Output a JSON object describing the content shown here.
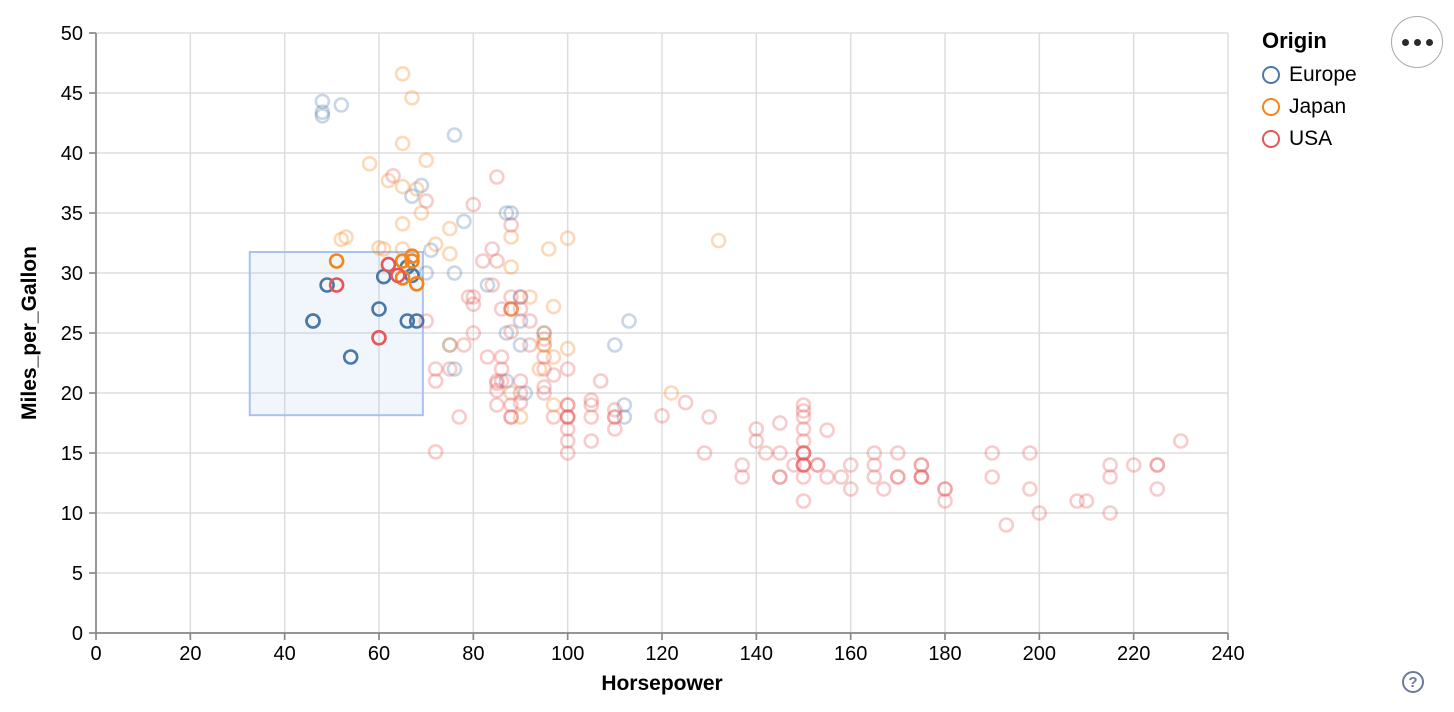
{
  "controls": {
    "help_label": "?",
    "menu_icon": "ellipsis"
  },
  "chart_data": {
    "type": "scatter",
    "xlabel": "Horsepower",
    "ylabel": "Miles_per_Gallon",
    "xlim": [
      0,
      240
    ],
    "ylim": [
      0,
      50
    ],
    "xticks": [
      0,
      20,
      40,
      60,
      80,
      100,
      120,
      140,
      160,
      180,
      200,
      220,
      240
    ],
    "yticks": [
      0,
      5,
      10,
      15,
      20,
      25,
      30,
      35,
      40,
      45,
      50
    ],
    "grid": true,
    "style": {
      "grid_color": "#dddddd",
      "axis_color": "#888888",
      "label_color": "#000000",
      "point_radius": 6.5,
      "point_stroke_width": 2.6,
      "unselected_opacity": 0.3,
      "selected_opacity": 1,
      "brush_fill": "rgba(170,199,238,0.16)",
      "brush_stroke": "#aac2ee"
    },
    "legend": {
      "title": "Origin",
      "position": "top-right",
      "entries": [
        {
          "label": "Europe",
          "color": "#4c78a8"
        },
        {
          "label": "Japan",
          "color": "#f58518"
        },
        {
          "label": "USA",
          "color": "#e45756"
        }
      ]
    },
    "brush_selection": {
      "hp_min": 32.6,
      "hp_max": 69.3,
      "mpg_min": 18.15,
      "mpg_max": 31.75
    },
    "series": [
      {
        "name": "Europe",
        "points": [
          [
            87,
            25
          ],
          [
            90,
            24
          ],
          [
            95,
            25
          ],
          [
            113,
            26
          ],
          [
            90,
            28
          ],
          [
            70,
            30
          ],
          [
            76,
            30
          ],
          [
            112,
            18
          ],
          [
            76,
            22
          ],
          [
            87,
            21
          ],
          [
            75,
            24
          ],
          [
            91,
            20
          ],
          [
            112,
            19
          ],
          [
            110,
            24
          ],
          [
            90,
            26
          ],
          [
            83,
            29
          ],
          [
            48,
            44.3
          ],
          [
            48,
            43.4
          ],
          [
            48,
            43.1
          ],
          [
            52,
            44
          ],
          [
            76,
            41.5
          ],
          [
            71,
            31.9
          ],
          [
            67,
            36.4
          ],
          [
            88,
            35
          ],
          [
            78,
            34.3
          ],
          [
            69,
            37.3
          ],
          [
            87,
            35
          ],
          [
            46,
            26
          ],
          [
            46,
            26
          ],
          [
            49,
            29
          ],
          [
            54,
            23
          ],
          [
            60,
            27
          ],
          [
            61,
            29.7
          ],
          [
            66,
            30.5
          ],
          [
            67,
            29.8
          ],
          [
            66,
            26
          ],
          [
            68,
            26
          ]
        ]
      },
      {
        "name": "Japan",
        "points": [
          [
            95,
            24
          ],
          [
            88,
            27
          ],
          [
            88,
            27
          ],
          [
            95,
            25
          ],
          [
            69,
            35
          ],
          [
            95,
            24
          ],
          [
            97,
            19
          ],
          [
            92,
            28
          ],
          [
            97,
            23
          ],
          [
            88,
            27
          ],
          [
            88,
            20
          ],
          [
            94,
            22
          ],
          [
            90,
            18
          ],
          [
            122,
            20
          ],
          [
            61,
            32
          ],
          [
            75,
            24
          ],
          [
            65,
            46.6
          ],
          [
            67,
            44.6
          ],
          [
            65,
            40.8
          ],
          [
            58,
            39.1
          ],
          [
            70,
            39.4
          ],
          [
            52,
            32.8
          ],
          [
            62,
            37.7
          ],
          [
            72,
            32.4
          ],
          [
            100,
            23.7
          ],
          [
            132,
            32.7
          ],
          [
            60,
            32.1
          ],
          [
            65,
            32
          ],
          [
            96,
            32
          ],
          [
            100,
            32.9
          ],
          [
            88,
            33
          ],
          [
            68,
            37
          ],
          [
            97,
            27.2
          ],
          [
            65,
            34.1
          ],
          [
            65,
            37.2
          ],
          [
            75,
            31.6
          ],
          [
            75,
            33.7
          ],
          [
            53,
            33
          ],
          [
            88,
            30.5
          ],
          [
            51,
            31
          ],
          [
            65,
            31
          ],
          [
            67,
            31.4
          ],
          [
            67,
            31
          ],
          [
            65,
            29.6
          ],
          [
            68,
            29.1
          ]
        ]
      },
      {
        "name": "USA",
        "points": [
          [
            130,
            18
          ],
          [
            165,
            15
          ],
          [
            150,
            18
          ],
          [
            150,
            16
          ],
          [
            140,
            17
          ],
          [
            198,
            15
          ],
          [
            220,
            14
          ],
          [
            215,
            14
          ],
          [
            225,
            14
          ],
          [
            190,
            15
          ],
          [
            170,
            15
          ],
          [
            160,
            14
          ],
          [
            150,
            15
          ],
          [
            225,
            14
          ],
          [
            95,
            22
          ],
          [
            97,
            18
          ],
          [
            85,
            21
          ],
          [
            90,
            21
          ],
          [
            215,
            10
          ],
          [
            200,
            10
          ],
          [
            210,
            11
          ],
          [
            193,
            9
          ],
          [
            90,
            28
          ],
          [
            100,
            19
          ],
          [
            105,
            16
          ],
          [
            100,
            17
          ],
          [
            88,
            19
          ],
          [
            100,
            18
          ],
          [
            165,
            14
          ],
          [
            175,
            14
          ],
          [
            153,
            14
          ],
          [
            150,
            14
          ],
          [
            180,
            12
          ],
          [
            170,
            13
          ],
          [
            175,
            13
          ],
          [
            110,
            18
          ],
          [
            72,
            22
          ],
          [
            100,
            19
          ],
          [
            88,
            18
          ],
          [
            86,
            23
          ],
          [
            70,
            26
          ],
          [
            80,
            25
          ],
          [
            90,
            20
          ],
          [
            86,
            21
          ],
          [
            165,
            13
          ],
          [
            175,
            14
          ],
          [
            150,
            15
          ],
          [
            153,
            14
          ],
          [
            150,
            17
          ],
          [
            208,
            11
          ],
          [
            155,
            13
          ],
          [
            160,
            12
          ],
          [
            190,
            13
          ],
          [
            150,
            15
          ],
          [
            145,
            13
          ],
          [
            137,
            13
          ],
          [
            150,
            14
          ],
          [
            86,
            22
          ],
          [
            80,
            28
          ],
          [
            175,
            13
          ],
          [
            150,
            14
          ],
          [
            145,
            13
          ],
          [
            137,
            14
          ],
          [
            150,
            15
          ],
          [
            198,
            12
          ],
          [
            150,
            13
          ],
          [
            158,
            13
          ],
          [
            150,
            14
          ],
          [
            215,
            13
          ],
          [
            225,
            12
          ],
          [
            175,
            13
          ],
          [
            105,
            18
          ],
          [
            100,
            16
          ],
          [
            100,
            18
          ],
          [
            88,
            18
          ],
          [
            95,
            23
          ],
          [
            150,
            11
          ],
          [
            167,
            12
          ],
          [
            170,
            13
          ],
          [
            180,
            12
          ],
          [
            100,
            18
          ],
          [
            72,
            21
          ],
          [
            85,
            19
          ],
          [
            107,
            21
          ],
          [
            145,
            15
          ],
          [
            230,
            16
          ],
          [
            150,
            19
          ],
          [
            180,
            11
          ],
          [
            95,
            20
          ],
          [
            100,
            15
          ],
          [
            78,
            24
          ],
          [
            110,
            18
          ],
          [
            95,
            24.5
          ],
          [
            100,
            22
          ],
          [
            105,
            19
          ],
          [
            110,
            17
          ],
          [
            140,
            16
          ],
          [
            142,
            15
          ],
          [
            148,
            14
          ],
          [
            129,
            15
          ],
          [
            83,
            23
          ],
          [
            75,
            22
          ],
          [
            97,
            21.5
          ],
          [
            72,
            15.1
          ],
          [
            85,
            20.2
          ],
          [
            85,
            20.8
          ],
          [
            110,
            18.6
          ],
          [
            120,
            18.1
          ],
          [
            145,
            17.5
          ],
          [
            155,
            16.9
          ],
          [
            125,
            19.2
          ],
          [
            150,
            18.5
          ],
          [
            90,
            19.2
          ],
          [
            95,
            20.5
          ],
          [
            88,
            25.1
          ],
          [
            80,
            27.4
          ],
          [
            90,
            27
          ],
          [
            84,
            29
          ],
          [
            85,
            31
          ],
          [
            88,
            28
          ],
          [
            88,
            27
          ],
          [
            88,
            34
          ],
          [
            84,
            32
          ],
          [
            92,
            24
          ],
          [
            86,
            27
          ],
          [
            79,
            28
          ],
          [
            82,
            31
          ],
          [
            63,
            38.1
          ],
          [
            70,
            36
          ],
          [
            85,
            38
          ],
          [
            105,
            19.4
          ],
          [
            77,
            18
          ],
          [
            80,
            35.7
          ],
          [
            92,
            26
          ],
          [
            51,
            29
          ],
          [
            60,
            24.6
          ],
          [
            62,
            30.7
          ],
          [
            64,
            29.8
          ]
        ]
      }
    ]
  }
}
